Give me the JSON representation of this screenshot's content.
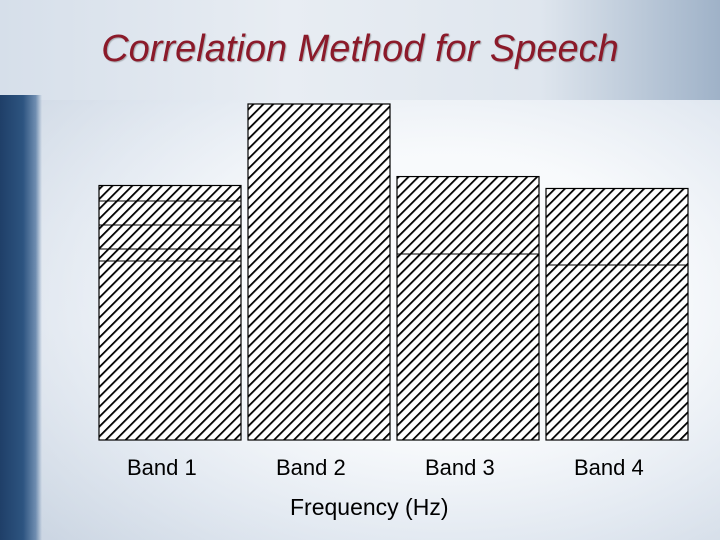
{
  "slide": {
    "title": "Correlation Method for Speech"
  },
  "chart_data": {
    "type": "bar",
    "title": "Correlation Method for Speech",
    "xlabel": "Frequency (Hz)",
    "ylabel": "",
    "categories": [
      "Band 1",
      "Band 2",
      "Band 3",
      "Band 4"
    ],
    "values": [
      256,
      338,
      265,
      253
    ],
    "ylim": [
      0,
      340
    ],
    "grid": false,
    "legend": "none",
    "fill_pattern": "diagonal-hatch",
    "colors": {
      "bar_fill": "#ffffff",
      "hatch": "#000000",
      "bar_outline": "#000000",
      "title": "#8b1a2a"
    }
  }
}
